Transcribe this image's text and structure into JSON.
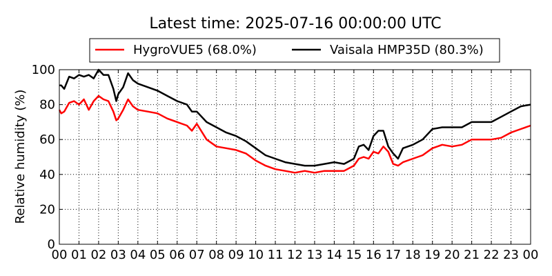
{
  "chart_data": {
    "type": "line",
    "title": "Latest time: 2025-07-16 00:00:00 UTC",
    "xlabel": "",
    "ylabel": "Relative humidity (%)",
    "xlim": [
      0,
      24
    ],
    "ylim": [
      0,
      100
    ],
    "x_ticks": [
      "00",
      "01",
      "02",
      "03",
      "04",
      "05",
      "06",
      "07",
      "08",
      "09",
      "10",
      "11",
      "12",
      "13",
      "14",
      "15",
      "16",
      "17",
      "18",
      "19",
      "20",
      "21",
      "22",
      "23",
      "00"
    ],
    "y_ticks": [
      0,
      20,
      40,
      60,
      80,
      100
    ],
    "grid": true,
    "legend_position": "top-center",
    "series": [
      {
        "name": "HygroVUE5 (68.0%)",
        "color": "#ff0000",
        "x": [
          0,
          0.1,
          0.25,
          0.5,
          0.75,
          1,
          1.25,
          1.5,
          1.75,
          2,
          2.25,
          2.5,
          2.75,
          2.9,
          3,
          3.25,
          3.5,
          3.75,
          4,
          4.5,
          5,
          5.5,
          6,
          6.5,
          6.75,
          7,
          7.5,
          8,
          8.5,
          9,
          9.5,
          10,
          10.5,
          11,
          11.5,
          12,
          12.5,
          13,
          13.5,
          14,
          14.5,
          15,
          15.25,
          15.5,
          15.75,
          16,
          16.25,
          16.5,
          16.75,
          17,
          17.25,
          17.5,
          18,
          18.5,
          19,
          19.5,
          20,
          20.5,
          21,
          21.5,
          22,
          22.5,
          23,
          23.5,
          24
        ],
        "values": [
          77,
          75,
          76,
          81,
          82,
          80,
          83,
          77,
          82,
          85,
          83,
          82,
          76,
          71,
          72,
          77,
          83,
          79,
          77,
          76,
          75,
          72,
          70,
          68,
          65,
          69,
          60,
          56,
          55,
          54,
          52,
          48,
          45,
          43,
          42,
          41,
          42,
          41,
          42,
          42,
          42,
          45,
          49,
          50,
          49,
          53,
          52,
          56,
          53,
          46,
          45,
          47,
          49,
          51,
          55,
          57,
          56,
          57,
          60,
          60,
          60,
          61,
          64,
          66,
          68
        ]
      },
      {
        "name": "Vaisala HMP35D (80.3%)",
        "color": "#000000",
        "x": [
          0,
          0.1,
          0.25,
          0.5,
          0.75,
          1,
          1.25,
          1.5,
          1.75,
          2,
          2.25,
          2.5,
          2.75,
          2.9,
          3,
          3.25,
          3.5,
          3.75,
          4,
          4.5,
          5,
          5.5,
          6,
          6.5,
          6.75,
          7,
          7.5,
          8,
          8.5,
          9,
          9.5,
          10,
          10.5,
          11,
          11.5,
          12,
          12.5,
          13,
          13.5,
          14,
          14.5,
          15,
          15.25,
          15.5,
          15.75,
          16,
          16.25,
          16.5,
          16.75,
          17,
          17.25,
          17.5,
          18,
          18.5,
          19,
          19.5,
          20,
          20.5,
          21,
          21.5,
          22,
          22.5,
          23,
          23.5,
          24
        ],
        "values": [
          91,
          91,
          89,
          96,
          95,
          97,
          96,
          97,
          95,
          100,
          97,
          97,
          89,
          82,
          86,
          90,
          98,
          94,
          92,
          90,
          88,
          85,
          82,
          80,
          76,
          76,
          70,
          67,
          64,
          62,
          59,
          55,
          51,
          49,
          47,
          46,
          45,
          45,
          46,
          47,
          46,
          49,
          56,
          57,
          54,
          62,
          65,
          65,
          56,
          52,
          49,
          55,
          57,
          60,
          66,
          67,
          67,
          67,
          70,
          70,
          70,
          73,
          76,
          79,
          80
        ]
      }
    ]
  }
}
